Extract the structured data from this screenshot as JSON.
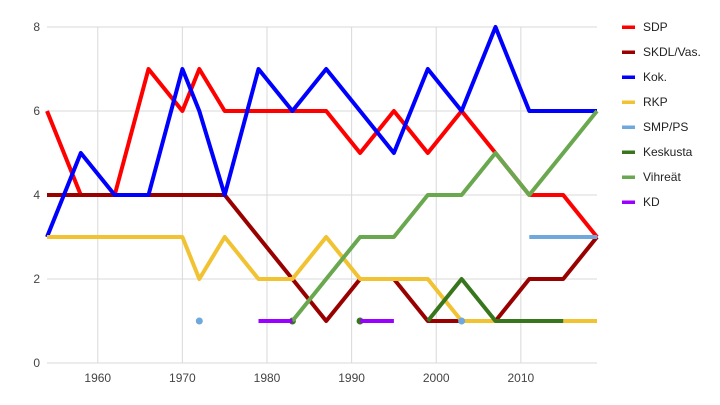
{
  "chart_data": {
    "type": "line",
    "title": "",
    "xlabel": "",
    "ylabel": "",
    "xlim": [
      1954,
      2019
    ],
    "ylim": [
      0,
      8
    ],
    "x_ticks": [
      1960,
      1970,
      1980,
      1990,
      2000,
      2010
    ],
    "y_ticks": [
      0,
      2,
      4,
      6,
      8
    ],
    "grid": true,
    "legend_position": "right",
    "series": [
      {
        "name": "SDP",
        "color": "#ff0000",
        "points": [
          [
            1954,
            6
          ],
          [
            1958,
            4
          ],
          [
            1962,
            4
          ],
          [
            1966,
            7
          ],
          [
            1970,
            6
          ],
          [
            1972,
            7
          ],
          [
            1975,
            6
          ],
          [
            1979,
            6
          ],
          [
            1983,
            6
          ],
          [
            1987,
            6
          ],
          [
            1991,
            5
          ],
          [
            1995,
            6
          ],
          [
            1999,
            5
          ],
          [
            2003,
            6
          ],
          [
            2007,
            5
          ],
          [
            2011,
            4
          ],
          [
            2015,
            4
          ],
          [
            2019,
            3
          ]
        ]
      },
      {
        "name": "SKDL/Vas.",
        "color": "#990000",
        "points": [
          [
            1954,
            4
          ],
          [
            1958,
            4
          ],
          [
            1962,
            4
          ],
          [
            1966,
            4
          ],
          [
            1970,
            4
          ],
          [
            1972,
            4
          ],
          [
            1975,
            4
          ],
          [
            1979,
            3
          ],
          [
            1983,
            2
          ],
          [
            1987,
            1
          ],
          [
            1991,
            2
          ],
          [
            1995,
            2
          ],
          [
            1999,
            1
          ],
          [
            2003,
            1
          ],
          [
            2007,
            1
          ],
          [
            2011,
            2
          ],
          [
            2015,
            2
          ],
          [
            2019,
            3
          ]
        ]
      },
      {
        "name": "Kok.",
        "color": "#0000ff",
        "points": [
          [
            1954,
            3
          ],
          [
            1958,
            5
          ],
          [
            1962,
            4
          ],
          [
            1966,
            4
          ],
          [
            1970,
            7
          ],
          [
            1972,
            6
          ],
          [
            1975,
            4
          ],
          [
            1979,
            7
          ],
          [
            1983,
            6
          ],
          [
            1987,
            7
          ],
          [
            1991,
            6
          ],
          [
            1995,
            5
          ],
          [
            1999,
            7
          ],
          [
            2003,
            6
          ],
          [
            2007,
            8
          ],
          [
            2011,
            6
          ],
          [
            2015,
            6
          ],
          [
            2019,
            6
          ]
        ]
      },
      {
        "name": "RKP",
        "color": "#f1c232",
        "points": [
          [
            1954,
            3
          ],
          [
            1958,
            3
          ],
          [
            1962,
            3
          ],
          [
            1966,
            3
          ],
          [
            1970,
            3
          ],
          [
            1972,
            2
          ],
          [
            1975,
            3
          ],
          [
            1979,
            2
          ],
          [
            1983,
            2
          ],
          [
            1987,
            3
          ],
          [
            1991,
            2
          ],
          [
            1995,
            2
          ],
          [
            1999,
            2
          ],
          [
            2003,
            1
          ],
          [
            2007,
            1
          ],
          [
            2011,
            1
          ],
          [
            2015,
            1
          ],
          [
            2019,
            1
          ]
        ]
      },
      {
        "name": "SMP/PS",
        "color": "#6fa8dc",
        "points": [
          [
            1972,
            1
          ],
          [
            2003,
            1
          ],
          [
            2011,
            3
          ],
          [
            2015,
            3
          ],
          [
            2019,
            3
          ]
        ]
      },
      {
        "name": "Keskusta",
        "color": "#38761d",
        "points": [
          [
            1983,
            1
          ],
          [
            1991,
            1
          ],
          [
            1999,
            1
          ],
          [
            2003,
            2
          ],
          [
            2007,
            1
          ],
          [
            2011,
            1
          ],
          [
            2015,
            1
          ]
        ]
      },
      {
        "name": "Vihreät",
        "color": "#6aa84f",
        "points": [
          [
            1983,
            1
          ],
          [
            1987,
            2
          ],
          [
            1991,
            3
          ],
          [
            1995,
            3
          ],
          [
            1999,
            4
          ],
          [
            2003,
            4
          ],
          [
            2007,
            5
          ],
          [
            2011,
            4
          ],
          [
            2015,
            5
          ],
          [
            2019,
            6
          ]
        ]
      },
      {
        "name": "KD",
        "color": "#9900ff",
        "points": [
          [
            1979,
            1
          ],
          [
            1983,
            1
          ],
          [
            1991,
            1
          ],
          [
            1995,
            1
          ]
        ]
      }
    ]
  }
}
